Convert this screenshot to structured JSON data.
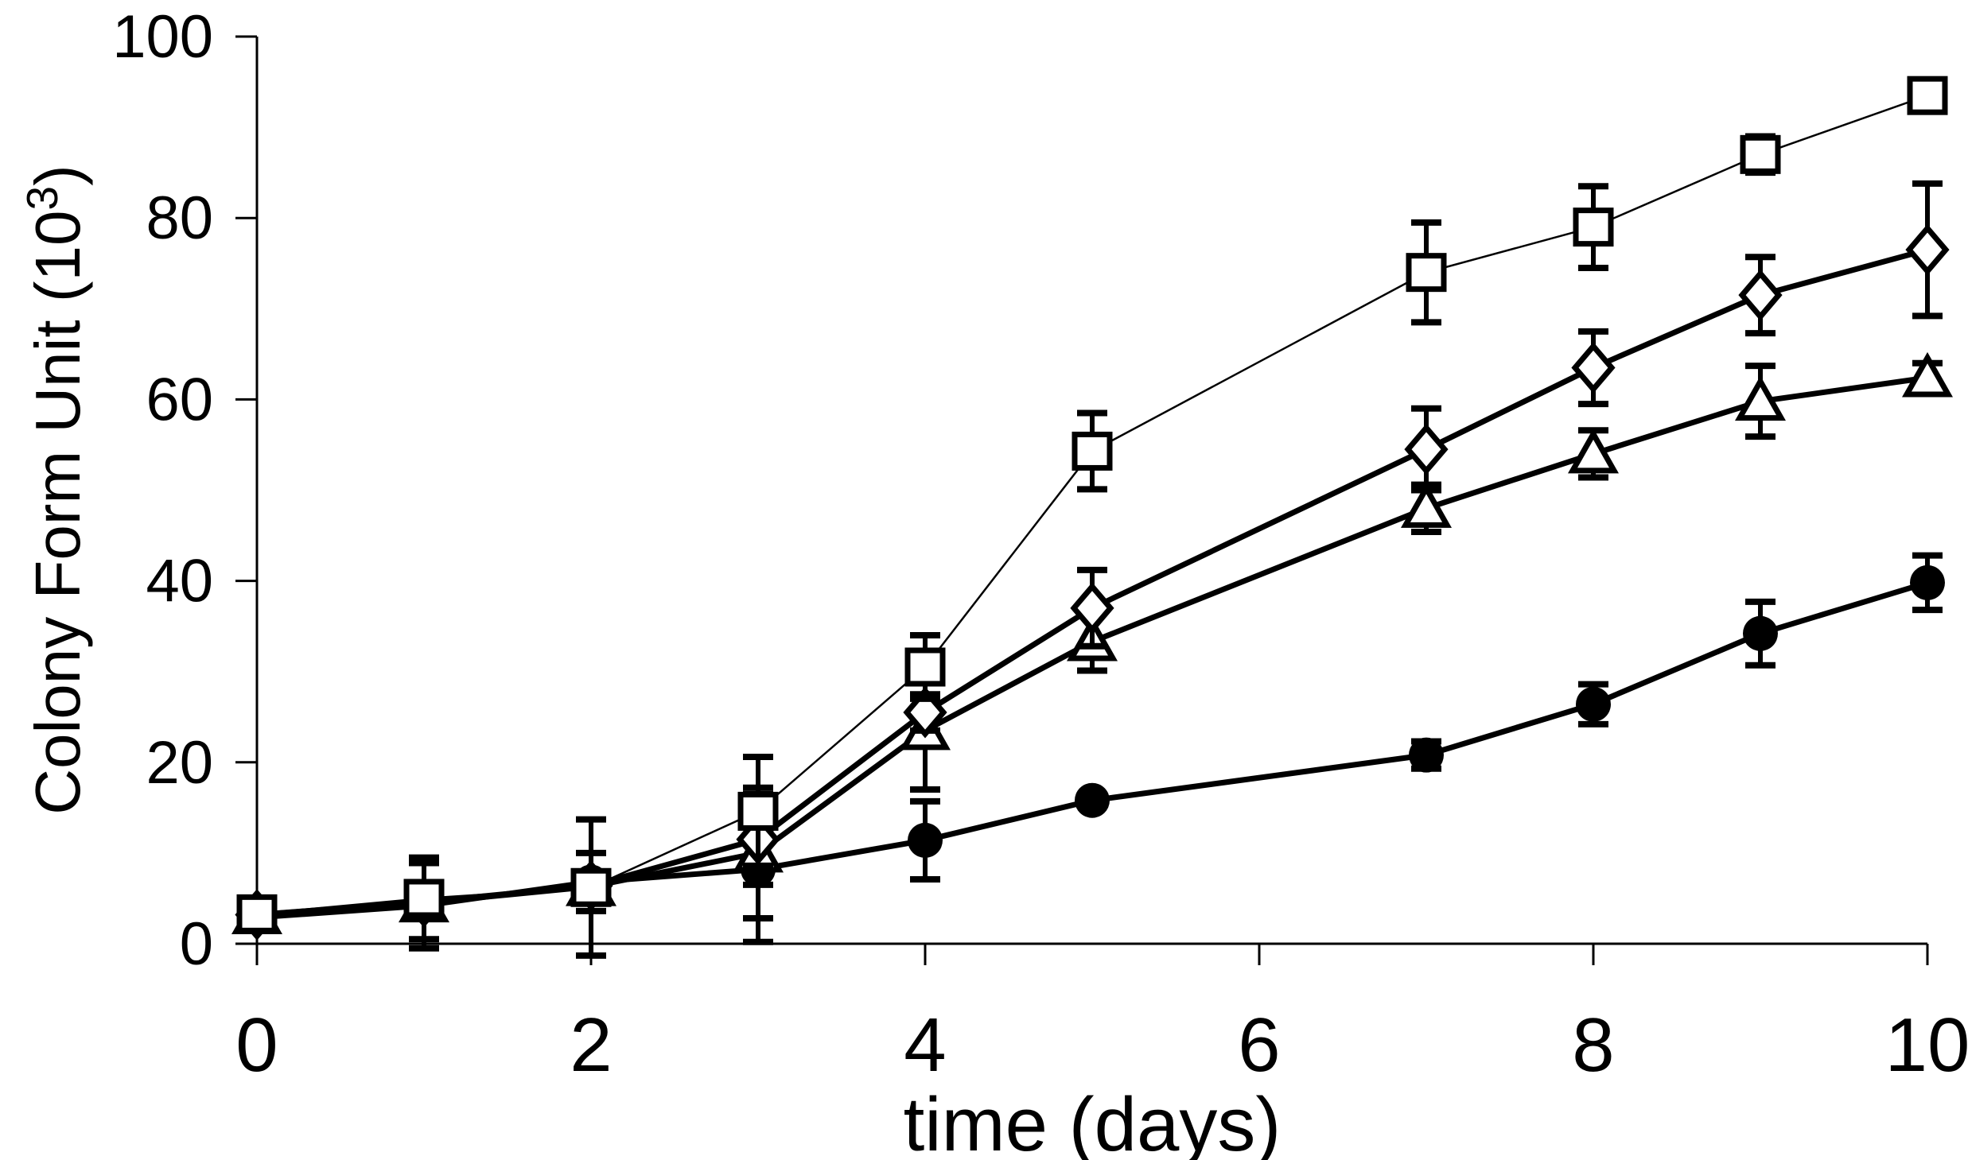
{
  "figure": {
    "background": "#ffffff",
    "ink": "#000000"
  },
  "chart_data": {
    "type": "line",
    "title": "",
    "xlabel": "time (days)",
    "ylabel": "Colony Form Unit (10³)",
    "ylabel_parts": {
      "base": "Colony Form Unit (10",
      "superscript": "3",
      "suffix": ")"
    },
    "xlim": [
      0,
      10
    ],
    "ylim": [
      0,
      100
    ],
    "x_ticks": [
      0,
      2,
      4,
      6,
      8,
      10
    ],
    "y_ticks": [
      0,
      20,
      40,
      60,
      80,
      100
    ],
    "grid": false,
    "legend": "none",
    "x": [
      0,
      1,
      2,
      3,
      4,
      5,
      7,
      8,
      9,
      10
    ],
    "series": [
      {
        "name": "filled-circle",
        "marker": "circle",
        "marker_fill": "filled",
        "line": "thick",
        "values": [
          2.9,
          4.2,
          6.8,
          8.2,
          11.4,
          15.8,
          20.8,
          26.4,
          34.2,
          39.8
        ],
        "errors": [
          0,
          4.7,
          3.2,
          8.0,
          4.3,
          0,
          1.5,
          2.2,
          3.5,
          3.0
        ]
      },
      {
        "name": "open-triangle",
        "marker": "triangle",
        "marker_fill": "open",
        "line": "thick",
        "values": [
          3.2,
          4.5,
          6.3,
          10.0,
          23.5,
          33.3,
          48.0,
          54.0,
          59.8,
          62.4
        ],
        "errors": [
          0,
          0,
          0,
          7.2,
          6.5,
          3.2,
          2.6,
          2.6,
          3.9,
          1.6
        ]
      },
      {
        "name": "open-diamond",
        "marker": "diamond",
        "marker_fill": "open",
        "line": "thick",
        "values": [
          3.2,
          4.6,
          6.4,
          11.5,
          25.5,
          37.0,
          54.5,
          63.5,
          71.5,
          76.5
        ],
        "errors": [
          0,
          0,
          0,
          5.0,
          2.0,
          4.2,
          4.5,
          4.0,
          4.2,
          7.3
        ]
      },
      {
        "name": "open-square",
        "marker": "square",
        "marker_fill": "open",
        "line": "thin",
        "values": [
          3.3,
          5.0,
          6.2,
          14.6,
          30.5,
          54.3,
          74.0,
          79.0,
          87.0,
          93.5
        ],
        "errors": [
          0,
          4.5,
          7.5,
          6.0,
          3.5,
          4.2,
          5.5,
          4.5,
          2.0,
          0
        ]
      }
    ]
  }
}
